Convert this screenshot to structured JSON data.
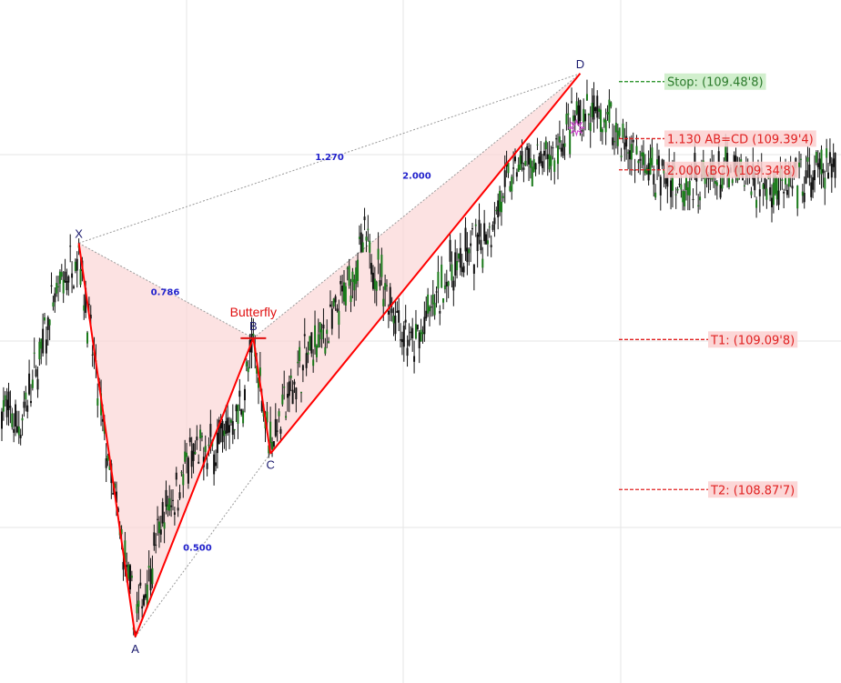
{
  "chart_data": {
    "type": "candlestick",
    "pattern_name": "Butterfly",
    "ylim": [
      108.6,
      109.55
    ],
    "pattern_points": [
      {
        "label": "X",
        "index": 45,
        "price": 109.24
      },
      {
        "label": "A",
        "index": 78,
        "price": 108.66
      },
      {
        "label": "B",
        "index": 147,
        "price": 109.1
      },
      {
        "label": "C",
        "index": 157,
        "price": 108.93
      },
      {
        "label": "D",
        "index": 338,
        "price": 109.49
      }
    ],
    "ratios": [
      {
        "value": "0.786",
        "from": "X",
        "to": "B"
      },
      {
        "value": "0.500",
        "from": "A",
        "to": "C"
      },
      {
        "value": "2.000",
        "from": "B",
        "to": "D"
      },
      {
        "value": "1.270",
        "from": "X",
        "to": "D"
      }
    ],
    "levels": [
      {
        "label": "Stop: (109.48'8)",
        "price": 109.478,
        "color": "#1a8a1a",
        "fill": "#c9ecc4",
        "text_color": "#2b7a2b",
        "style": "dashed"
      },
      {
        "label": "1.130 AB=CD (109.39'4)",
        "price": 109.394,
        "color": "#e02020",
        "fill": "#fbd0d0",
        "text_color": "#e02020",
        "style": "dashed"
      },
      {
        "label": "2.000 (BC) (109.34'8)",
        "price": 109.348,
        "color": "#e02020",
        "fill": "#fbd0d0",
        "text_color": "#e02020",
        "style": "dashed"
      },
      {
        "label": "T1: (109.09'8)",
        "price": 109.098,
        "color": "#e02020",
        "fill": "#fbd0d0",
        "text_color": "#e02020",
        "style": "dashed"
      },
      {
        "label": "T2: (108.87'7)",
        "price": 108.877,
        "color": "#e02020",
        "fill": "#fbd0d0",
        "text_color": "#e02020",
        "style": "dashed"
      }
    ],
    "colors": {
      "pattern_line": "#ff0000",
      "pattern_fill": "#fbd6d6",
      "connector": "#999999",
      "ratio_text": "#2222cc",
      "point_label": "#1a1a6e",
      "candle_up": "#1a7a1a",
      "candle_down": "#111111",
      "grid": "#e6e6e6",
      "title": "#e01010"
    },
    "grid": true,
    "legend": "none"
  }
}
